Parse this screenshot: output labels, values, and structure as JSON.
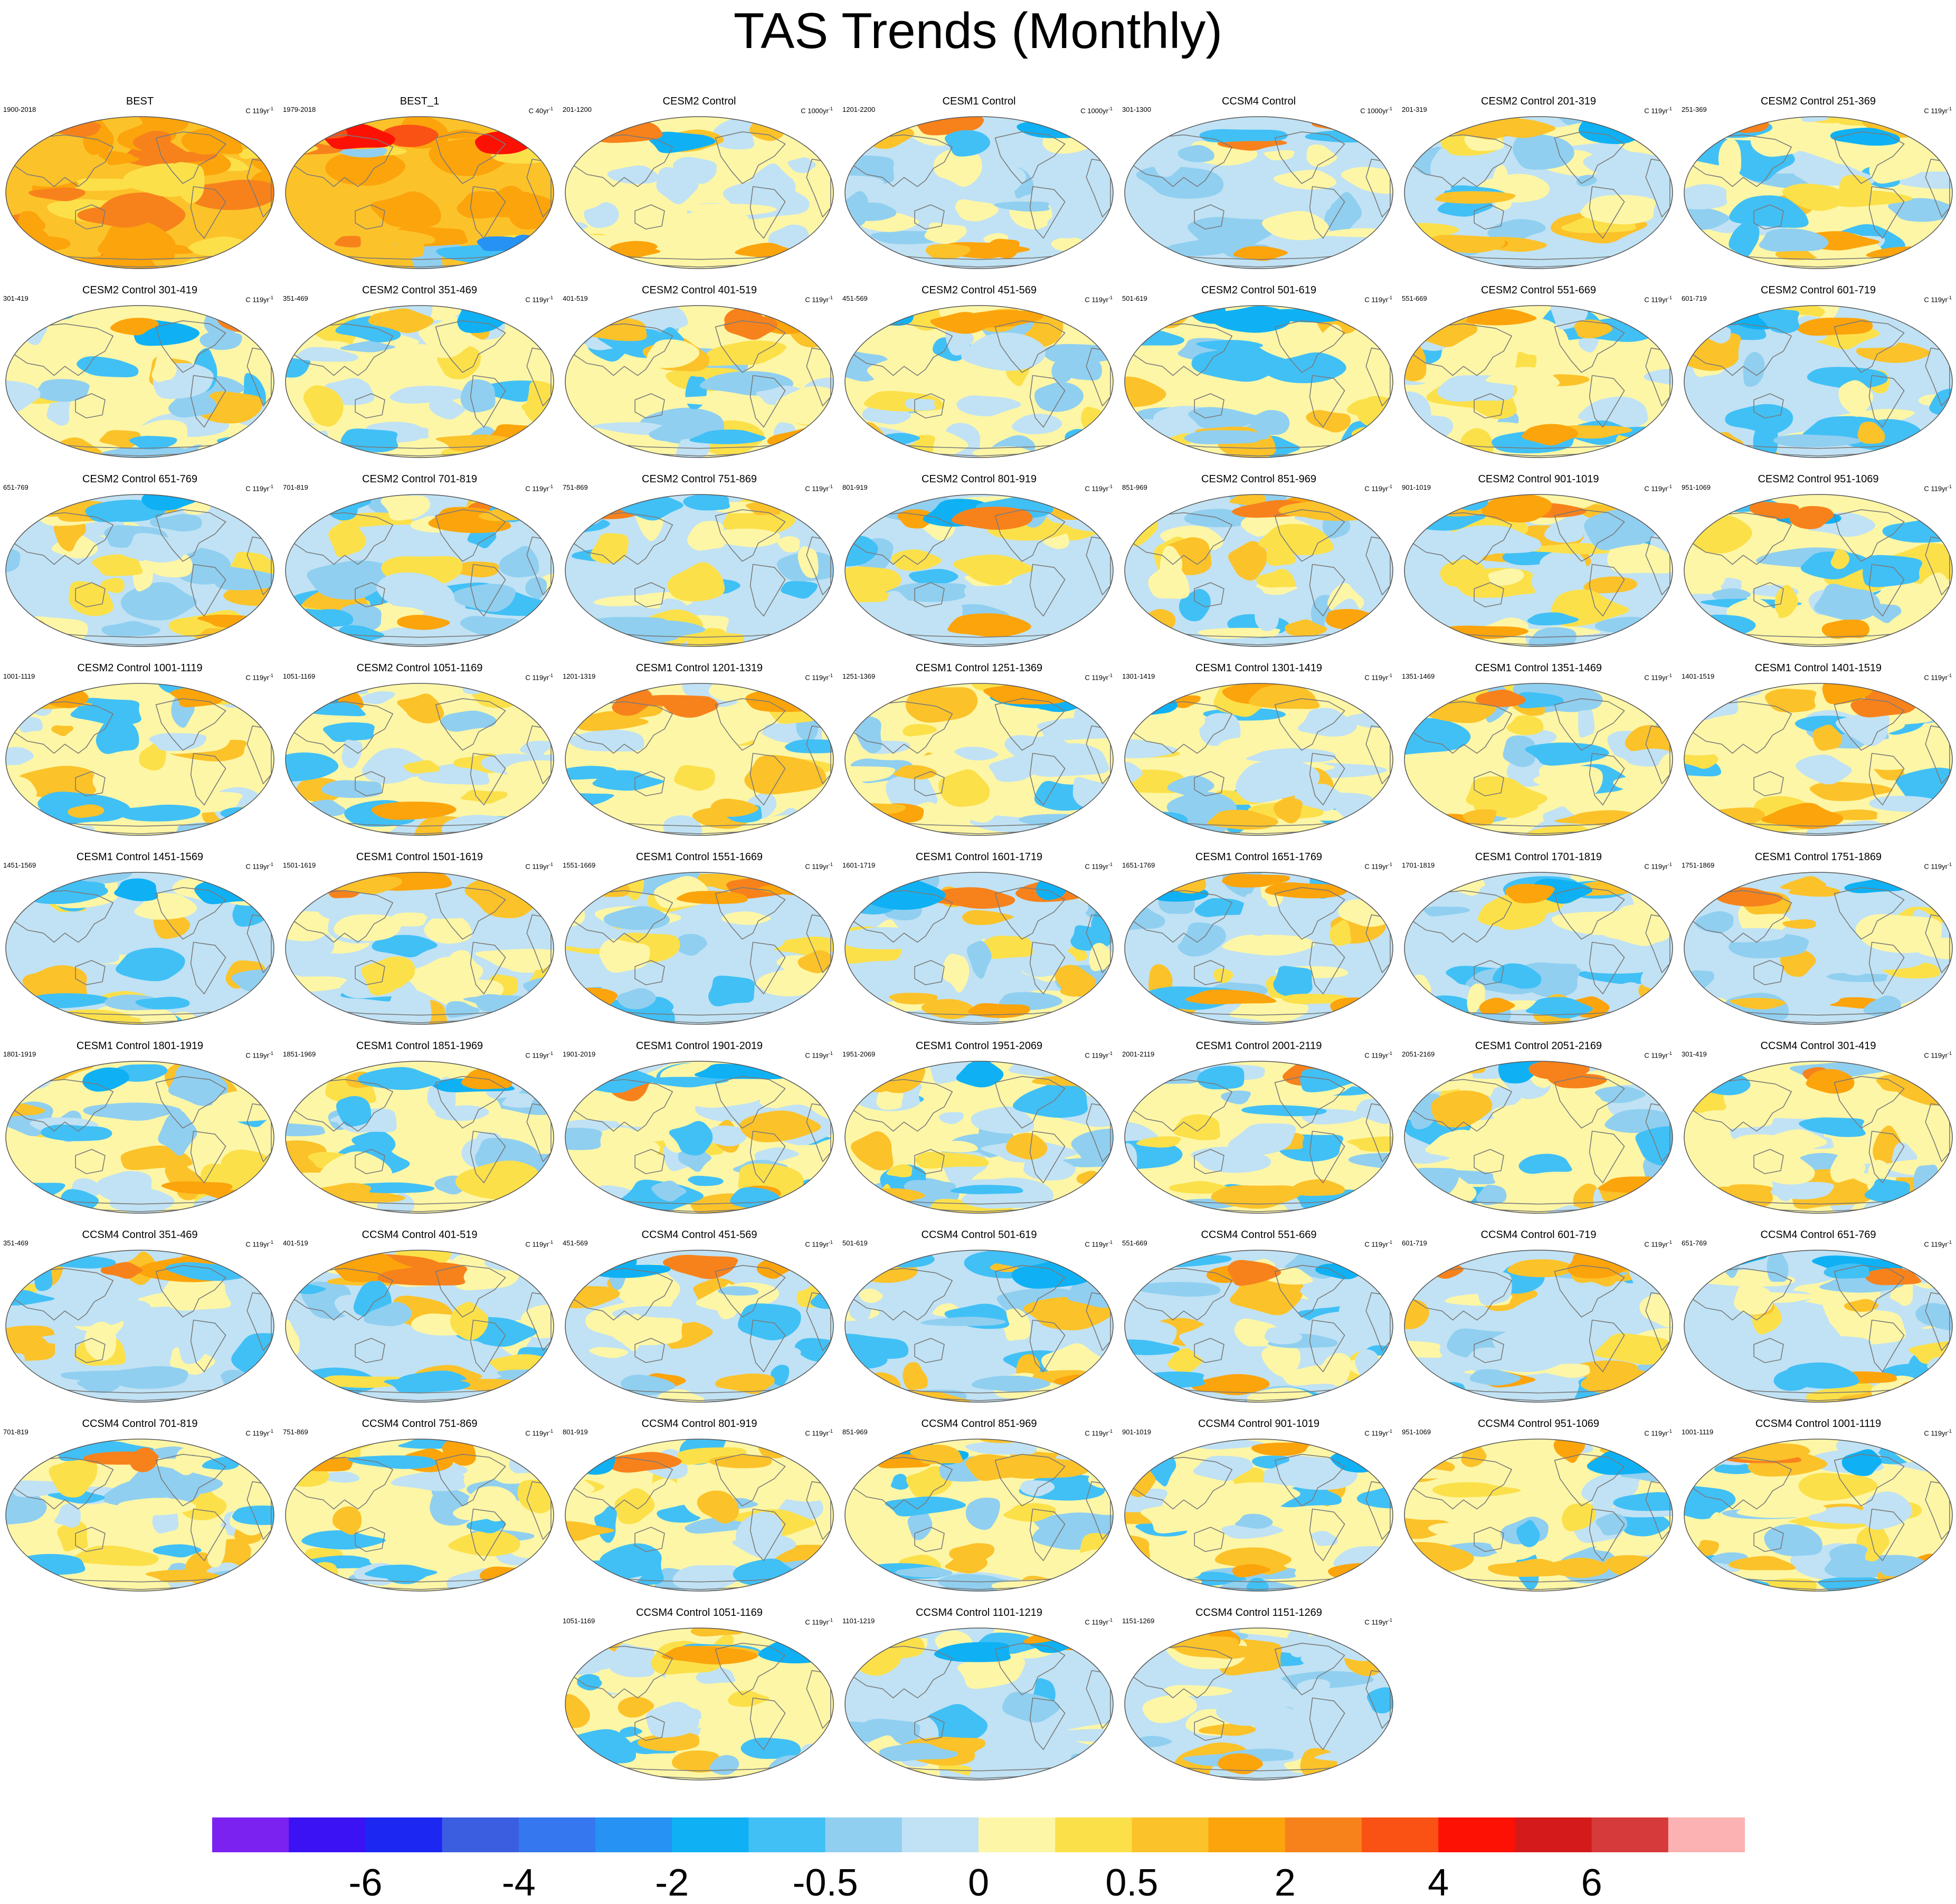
{
  "title": "TAS Trends (Monthly)",
  "units_prefix": "C",
  "units_suffix": "yr",
  "units_exp": "-1",
  "palette": {
    "purple": "#7b22f0",
    "indigo": "#3a12f4",
    "blue_dark": "#1c27f2",
    "royal": "#3b5ee0",
    "blue_mid": "#3477ee",
    "azure": "#2592f4",
    "sky": "#0fb1f4",
    "sky_light": "#41c0f6",
    "blue_pale": "#90cff0",
    "blue_faint": "#c0e2f4",
    "yellow_pale": "#fdf6a6",
    "yellow": "#fce04a",
    "gold": "#fcc22a",
    "orange_light": "#fca40c",
    "orange": "#f7821c",
    "orange_red": "#fa5214",
    "red": "#fc1104",
    "red_dark": "#d41a1a",
    "crimson": "#d63a3a",
    "pink": "#fcb2b2",
    "coast": "#7a7a7a"
  },
  "colorbar": {
    "colors": [
      "#7b22f0",
      "#3a12f4",
      "#1c27f2",
      "#3b5ee0",
      "#3477ee",
      "#2592f4",
      "#0fb1f4",
      "#41c0f6",
      "#90cff0",
      "#c0e2f4",
      "#fdf6a6",
      "#fce04a",
      "#fcc22a",
      "#fca40c",
      "#f7821c",
      "#fa5214",
      "#fc1104",
      "#d41a1a",
      "#d63a3a",
      "#fcb2b2"
    ],
    "labels": [
      {
        "text": "-6",
        "edge": 2
      },
      {
        "text": "-4",
        "edge": 4
      },
      {
        "text": "-2",
        "edge": 6
      },
      {
        "text": "-0.5",
        "edge": 8
      },
      {
        "text": "0",
        "edge": 10
      },
      {
        "text": "0.5",
        "edge": 12
      },
      {
        "text": "2",
        "edge": 14
      },
      {
        "text": "4",
        "edge": 16
      },
      {
        "text": "6",
        "edge": 18
      }
    ]
  },
  "panels": [
    {
      "title": "BEST",
      "period": "1900-2018",
      "duration": "119",
      "style": "best"
    },
    {
      "title": "BEST_1",
      "period": "1979-2018",
      "duration": "40",
      "style": "best1"
    },
    {
      "title": "CESM2 Control",
      "period": "201-1200",
      "duration": "1000",
      "style": "warmflat"
    },
    {
      "title": "CESM1 Control",
      "period": "1201-2200",
      "duration": "1000",
      "style": "coolflat"
    },
    {
      "title": "CCSM4 Control",
      "period": "301-1300",
      "duration": "1000",
      "style": "coolflat2"
    },
    {
      "title": "CESM2 Control 201-319",
      "period": "201-319",
      "duration": "119"
    },
    {
      "title": "CESM2 Control 251-369",
      "period": "251-369",
      "duration": "119"
    },
    {
      "title": "CESM2 Control 301-419",
      "period": "301-419",
      "duration": "119"
    },
    {
      "title": "CESM2 Control 351-469",
      "period": "351-469",
      "duration": "119"
    },
    {
      "title": "CESM2 Control 401-519",
      "period": "401-519",
      "duration": "119"
    },
    {
      "title": "CESM2 Control 451-569",
      "period": "451-569",
      "duration": "119"
    },
    {
      "title": "CESM2 Control 501-619",
      "period": "501-619",
      "duration": "119"
    },
    {
      "title": "CESM2 Control 551-669",
      "period": "551-669",
      "duration": "119"
    },
    {
      "title": "CESM2 Control 601-719",
      "period": "601-719",
      "duration": "119"
    },
    {
      "title": "CESM2 Control 651-769",
      "period": "651-769",
      "duration": "119"
    },
    {
      "title": "CESM2 Control 701-819",
      "period": "701-819",
      "duration": "119"
    },
    {
      "title": "CESM2 Control 751-869",
      "period": "751-869",
      "duration": "119"
    },
    {
      "title": "CESM2 Control 801-919",
      "period": "801-919",
      "duration": "119"
    },
    {
      "title": "CESM2 Control 851-969",
      "period": "851-969",
      "duration": "119"
    },
    {
      "title": "CESM2 Control 901-1019",
      "period": "901-1019",
      "duration": "119"
    },
    {
      "title": "CESM2 Control 951-1069",
      "period": "951-1069",
      "duration": "119"
    },
    {
      "title": "CESM2 Control 1001-1119",
      "period": "1001-1119",
      "duration": "119"
    },
    {
      "title": "CESM2 Control 1051-1169",
      "period": "1051-1169",
      "duration": "119"
    },
    {
      "title": "CESM1 Control 1201-1319",
      "period": "1201-1319",
      "duration": "119"
    },
    {
      "title": "CESM1 Control 1251-1369",
      "period": "1251-1369",
      "duration": "119"
    },
    {
      "title": "CESM1 Control 1301-1419",
      "period": "1301-1419",
      "duration": "119"
    },
    {
      "title": "CESM1 Control 1351-1469",
      "period": "1351-1469",
      "duration": "119"
    },
    {
      "title": "CESM1 Control 1401-1519",
      "period": "1401-1519",
      "duration": "119"
    },
    {
      "title": "CESM1 Control 1451-1569",
      "period": "1451-1569",
      "duration": "119"
    },
    {
      "title": "CESM1 Control 1501-1619",
      "period": "1501-1619",
      "duration": "119"
    },
    {
      "title": "CESM1 Control 1551-1669",
      "period": "1551-1669",
      "duration": "119"
    },
    {
      "title": "CESM1 Control 1601-1719",
      "period": "1601-1719",
      "duration": "119"
    },
    {
      "title": "CESM1 Control 1651-1769",
      "period": "1651-1769",
      "duration": "119"
    },
    {
      "title": "CESM1 Control 1701-1819",
      "period": "1701-1819",
      "duration": "119"
    },
    {
      "title": "CESM1 Control 1751-1869",
      "period": "1751-1869",
      "duration": "119"
    },
    {
      "title": "CESM1 Control 1801-1919",
      "period": "1801-1919",
      "duration": "119"
    },
    {
      "title": "CESM1 Control 1851-1969",
      "period": "1851-1969",
      "duration": "119"
    },
    {
      "title": "CESM1 Control 1901-2019",
      "period": "1901-2019",
      "duration": "119"
    },
    {
      "title": "CESM1 Control 1951-2069",
      "period": "1951-2069",
      "duration": "119"
    },
    {
      "title": "CESM1 Control 2001-2119",
      "period": "2001-2119",
      "duration": "119"
    },
    {
      "title": "CESM1 Control 2051-2169",
      "period": "2051-2169",
      "duration": "119"
    },
    {
      "title": "CCSM4 Control 301-419",
      "period": "301-419",
      "duration": "119"
    },
    {
      "title": "CCSM4 Control 351-469",
      "period": "351-469",
      "duration": "119"
    },
    {
      "title": "CCSM4 Control 401-519",
      "period": "401-519",
      "duration": "119"
    },
    {
      "title": "CCSM4 Control 451-569",
      "period": "451-569",
      "duration": "119"
    },
    {
      "title": "CCSM4 Control 501-619",
      "period": "501-619",
      "duration": "119"
    },
    {
      "title": "CCSM4 Control 551-669",
      "period": "551-669",
      "duration": "119"
    },
    {
      "title": "CCSM4 Control 601-719",
      "period": "601-719",
      "duration": "119"
    },
    {
      "title": "CCSM4 Control 651-769",
      "period": "651-769",
      "duration": "119"
    },
    {
      "title": "CCSM4 Control 701-819",
      "period": "701-819",
      "duration": "119"
    },
    {
      "title": "CCSM4 Control 751-869",
      "period": "751-869",
      "duration": "119"
    },
    {
      "title": "CCSM4 Control 801-919",
      "period": "801-919",
      "duration": "119"
    },
    {
      "title": "CCSM4 Control 851-969",
      "period": "851-969",
      "duration": "119"
    },
    {
      "title": "CCSM4 Control 901-1019",
      "period": "901-1019",
      "duration": "119"
    },
    {
      "title": "CCSM4 Control 951-1069",
      "period": "951-1069",
      "duration": "119"
    },
    {
      "title": "CCSM4 Control 1001-1119",
      "period": "1001-1119",
      "duration": "119"
    },
    {
      "title": "CCSM4 Control 1051-1169",
      "period": "1051-1169",
      "duration": "119"
    },
    {
      "title": "CCSM4 Control 1101-1219",
      "period": "1101-1219",
      "duration": "119"
    },
    {
      "title": "CCSM4 Control 1151-1269",
      "period": "1151-1269",
      "duration": "119"
    }
  ]
}
